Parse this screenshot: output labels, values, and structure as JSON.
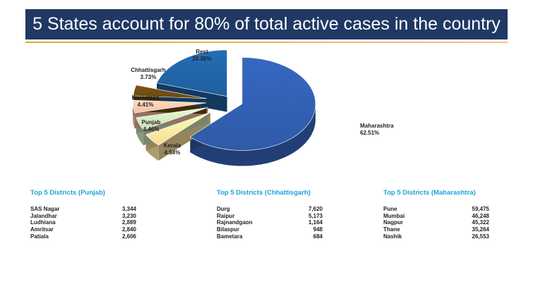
{
  "title": "5 States account for 80% of total active cases in the country",
  "chart_data": {
    "type": "pie",
    "slices": [
      {
        "label": "Maharashtra",
        "value": 62.51,
        "value_text": "62.51%",
        "color": "#2f5aa8"
      },
      {
        "label": "Kerala",
        "value": 4.54,
        "value_text": "4.54%",
        "color": "#f5dd9a"
      },
      {
        "label": "Punjab",
        "value": 4.46,
        "value_text": "4.46%",
        "color": "#c9dcb8"
      },
      {
        "label": "Karnataka",
        "value": 4.41,
        "value_text": "4.41%",
        "color": "#f2c0a6"
      },
      {
        "label": "Chhattisgarh",
        "value": 3.73,
        "value_text": "3.73%",
        "color": "#6b4a12"
      },
      {
        "label": "Rest",
        "value": 20.35,
        "value_text": "20.35%",
        "color": "#1f5f9e"
      }
    ]
  },
  "districts": [
    {
      "title": "Top 5 Districts (Punjab)",
      "rows": [
        {
          "name": "SAS Nagar",
          "value": "3,344"
        },
        {
          "name": "Jalandhar",
          "value": "3,230"
        },
        {
          "name": "Ludhiana",
          "value": "2,889"
        },
        {
          "name": "Amritsar",
          "value": "2,840"
        },
        {
          "name": "Patiala",
          "value": "2,606"
        }
      ]
    },
    {
      "title": "Top 5 Districts (Chhattisgarh)",
      "rows": [
        {
          "name": "Durg",
          "value": "7,620"
        },
        {
          "name": "Raipur",
          "value": "5,173"
        },
        {
          "name": "Rajnandgaon",
          "value": "1,164"
        },
        {
          "name": "Bilaspur",
          "value": "948"
        },
        {
          "name": "Bametara",
          "value": "684"
        }
      ]
    },
    {
      "title": "Top 5 Districts (Maharashtra)",
      "rows": [
        {
          "name": "Pune",
          "value": "59,475"
        },
        {
          "name": "Mumbai",
          "value": "46,248"
        },
        {
          "name": "Nagpur",
          "value": "45,322"
        },
        {
          "name": "Thane",
          "value": "35,264"
        },
        {
          "name": "Nashik",
          "value": "26,553"
        }
      ]
    }
  ]
}
